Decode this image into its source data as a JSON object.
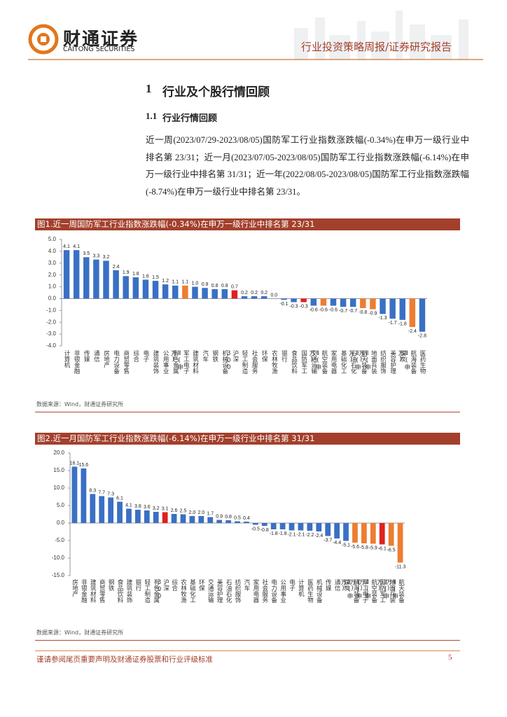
{
  "header": {
    "brand": "财通证券",
    "brand_en": "CAITONG SECURITIES",
    "report_type": "行业投资策略周报/证券研究报告"
  },
  "section": {
    "heading_number": "1",
    "heading": "行业及个股行情回顾",
    "subheading_number": "1.1",
    "subheading": "行业行情回顾",
    "paragraph": "近一周(2023/07/29-2023/08/05)国防军工行业指数涨跌幅(-0.34%)在申万一级行业中排名第 23/31；近一月(2023/07/05-2023/08/05)国防军工行业指数涨跌幅(-6.14%)在申万一级行业中排名第 31/31；近一年(2022/08/05-2023/08/05)国防军工行业指数涨跌幅(-8.74%)在申万一级行业中排名第 23/31。"
  },
  "chart_data": [
    {
      "type": "bar",
      "title": "图1.近一周国防军工行业指数涨跌幅(-0.34%)在申万一级行业中排名第 23/31",
      "source": "数据来源：Wind，财通证券研究所",
      "categories": [
        "计算机",
        "非银金融",
        "传媒",
        "通信",
        "房地产",
        "电力设备",
        "商贸零售",
        "综合",
        "电子",
        "建筑装饰",
        "公用事业",
        "有色金属",
        "军工电子Ⅱ(申万)",
        "建筑材料",
        "汽车",
        "钢铁",
        "机械设备",
        "沪深300",
        "轻工制造",
        "社会服务",
        "环保",
        "农林牧渔",
        "银行",
        "食品饮料",
        "国防军工",
        "交通运输",
        "航空装备Ⅱ(申万)",
        "家用电器",
        "基础化工",
        "石油石化",
        "航天装备Ⅱ(申万)",
        "地面兵装Ⅱ(申万)",
        "纺织服饰",
        "美容护理",
        "煤炭",
        "航海装备Ⅱ(申万)",
        "医药生物"
      ],
      "values": [
        4.1,
        4.1,
        3.5,
        3.3,
        3.2,
        2.4,
        1.9,
        1.8,
        1.6,
        1.5,
        1.2,
        1.1,
        1.1,
        1.0,
        0.9,
        0.8,
        0.8,
        0.7,
        0.2,
        0.2,
        0.2,
        0.0,
        -0.1,
        -0.3,
        -0.3,
        -0.6,
        -0.6,
        -0.6,
        -0.7,
        -0.7,
        -0.8,
        -0.9,
        -1.3,
        -1.7,
        -1.8,
        -2.4,
        -2.8
      ],
      "value_labels": [
        "4.1",
        "4.1",
        "3.5",
        "3.3",
        "3.2",
        "2.4",
        "1.9",
        "1.8",
        "1.6",
        "1.5",
        "1.2",
        "1.1",
        "1.1",
        "1.0",
        "0.9",
        "0.8",
        "0.8",
        "0.7",
        "0.2",
        "0.2",
        "0.2",
        "0.0",
        "-0.1",
        "-0.3",
        "-0.3",
        "-0.6",
        "-0.6",
        "-0.6",
        "-0.7",
        "-0.7",
        "-0.8",
        "-0.9",
        "-1.3",
        "-1.7",
        "-1.8",
        "-2.4",
        "-2.8"
      ],
      "colors": [
        "#3a70c4",
        "#3a70c4",
        "#3a70c4",
        "#3a70c4",
        "#3a70c4",
        "#3a70c4",
        "#3a70c4",
        "#3a70c4",
        "#3a70c4",
        "#3a70c4",
        "#3a70c4",
        "#3a70c4",
        "#ed7d31",
        "#3a70c4",
        "#3a70c4",
        "#3a70c4",
        "#3a70c4",
        "#e02020",
        "#3a70c4",
        "#3a70c4",
        "#3a70c4",
        "#3a70c4",
        "#3a70c4",
        "#3a70c4",
        "#e02020",
        "#3a70c4",
        "#ed7d31",
        "#3a70c4",
        "#3a70c4",
        "#3a70c4",
        "#ed7d31",
        "#ed7d31",
        "#3a70c4",
        "#3a70c4",
        "#3a70c4",
        "#ed7d31",
        "#3a70c4"
      ],
      "ylim": [
        -4,
        5
      ],
      "yticks": [
        {
          "value": -4,
          "label": "-4.0"
        },
        {
          "value": -3,
          "label": "-3.0"
        },
        {
          "value": -2,
          "label": "-2.0"
        },
        {
          "value": -1,
          "label": "-1.0"
        },
        {
          "value": 0,
          "label": "0.0"
        },
        {
          "value": 1,
          "label": "1.0"
        },
        {
          "value": 2,
          "label": "2.0"
        },
        {
          "value": 3,
          "label": "3.0"
        },
        {
          "value": 4,
          "label": "4.0"
        },
        {
          "value": 5,
          "label": "5.0"
        }
      ]
    },
    {
      "type": "bar",
      "title": "图2.近一月国防军工行业指数涨跌幅(-6.14%)在申万一级行业中排名第 31/31",
      "source": "数据来源：Wind，财通证券研究所",
      "categories": [
        "房地产",
        "非银金融",
        "建筑材料",
        "商贸零售",
        "钢铁",
        "食品饮料",
        "建筑装饰",
        "银行",
        "轻工制造",
        "有色金属",
        "沪深300",
        "综合",
        "农林牧渔",
        "基础化工",
        "环保",
        "交通运输",
        "美容护理",
        "石油石化",
        "纺织服饰",
        "汽车",
        "家用电器",
        "社会服务",
        "电力设备",
        "公用事业",
        "电子",
        "计算机",
        "医药生物",
        "机械设备",
        "传媒",
        "通信",
        "煤炭",
        "航海装备Ⅱ(申万)",
        "军工电子Ⅱ(申万)",
        "航空装备Ⅱ(申万)",
        "国防军工",
        "地面兵装Ⅱ(申万)",
        "航天装备Ⅱ(申万)"
      ],
      "values": [
        16.1,
        15.6,
        8.3,
        7.7,
        7.3,
        6.1,
        4.1,
        3.8,
        3.6,
        3.2,
        3.1,
        2.6,
        2.5,
        2.0,
        2.0,
        1.7,
        0.9,
        0.8,
        0.5,
        0.4,
        -0.5,
        -0.8,
        -1.8,
        -1.8,
        -2.1,
        -2.1,
        -2.2,
        -2.4,
        -3.7,
        -4.4,
        -5.1,
        -5.6,
        -5.8,
        -5.9,
        -6.1,
        -6.5,
        -11.3
      ],
      "value_labels": [
        "16.1",
        "15.6",
        "8.3",
        "7.7",
        "7.3",
        "6.1",
        "4.1",
        "3.8",
        "3.6",
        "3.2",
        "3.1",
        "2.6",
        "2.5",
        "2.0",
        "2.0",
        "1.7",
        "0.9",
        "0.8",
        "0.5",
        "0.4",
        "-0.5",
        "-0.8",
        "-1.8",
        "-1.8",
        "-2.1",
        "-2.1",
        "-2.2",
        "-2.4",
        "-3.7",
        "-4.4",
        "-5.1",
        "-5.6",
        "-5.8",
        "-5.9",
        "-6.1",
        "-6.5",
        "-11.3"
      ],
      "colors": [
        "#3a70c4",
        "#3a70c4",
        "#3a70c4",
        "#3a70c4",
        "#3a70c4",
        "#3a70c4",
        "#3a70c4",
        "#3a70c4",
        "#3a70c4",
        "#3a70c4",
        "#e02020",
        "#3a70c4",
        "#3a70c4",
        "#3a70c4",
        "#3a70c4",
        "#3a70c4",
        "#3a70c4",
        "#3a70c4",
        "#3a70c4",
        "#3a70c4",
        "#3a70c4",
        "#3a70c4",
        "#3a70c4",
        "#3a70c4",
        "#3a70c4",
        "#3a70c4",
        "#3a70c4",
        "#3a70c4",
        "#3a70c4",
        "#3a70c4",
        "#3a70c4",
        "#ed7d31",
        "#ed7d31",
        "#ed7d31",
        "#e02020",
        "#ed7d31",
        "#ed7d31"
      ],
      "ylim": [
        -15,
        20
      ],
      "yticks": [
        {
          "value": -15,
          "label": "-15.0"
        },
        {
          "value": -10,
          "label": "-10.0"
        },
        {
          "value": -5,
          "label": "-5.0"
        },
        {
          "value": 0,
          "label": "0.0"
        },
        {
          "value": 5,
          "label": "5.0"
        },
        {
          "value": 10,
          "label": "10.0"
        },
        {
          "value": 15,
          "label": "15.0"
        },
        {
          "value": 20,
          "label": "20.0"
        }
      ]
    }
  ],
  "footer": {
    "disclaimer": "谨请参阅尾页重要声明及财通证券股票和行业评级标准",
    "page": "5"
  }
}
